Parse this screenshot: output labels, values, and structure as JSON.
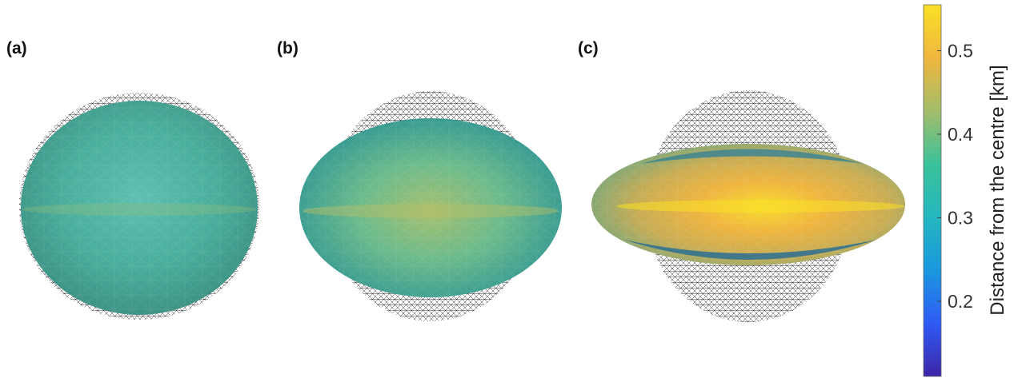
{
  "panels": [
    {
      "id": "a",
      "label": "(a)"
    },
    {
      "id": "b",
      "label": "(b)"
    },
    {
      "id": "c",
      "label": "(c)"
    }
  ],
  "colorbar": {
    "label": "Distance from the centre [km]",
    "min": 0.11,
    "max": 0.555,
    "ticks": [
      {
        "value": 0.2,
        "label": "0.2"
      },
      {
        "value": 0.3,
        "label": "0.3"
      },
      {
        "value": 0.4,
        "label": "0.4"
      },
      {
        "value": 0.5,
        "label": "0.5"
      }
    ],
    "colormap": [
      "#3d26a8",
      "#2f5af5",
      "#1a98de",
      "#25b7bf",
      "#3bc29a",
      "#a3bd6a",
      "#f0b73e",
      "#f9e026"
    ]
  }
}
